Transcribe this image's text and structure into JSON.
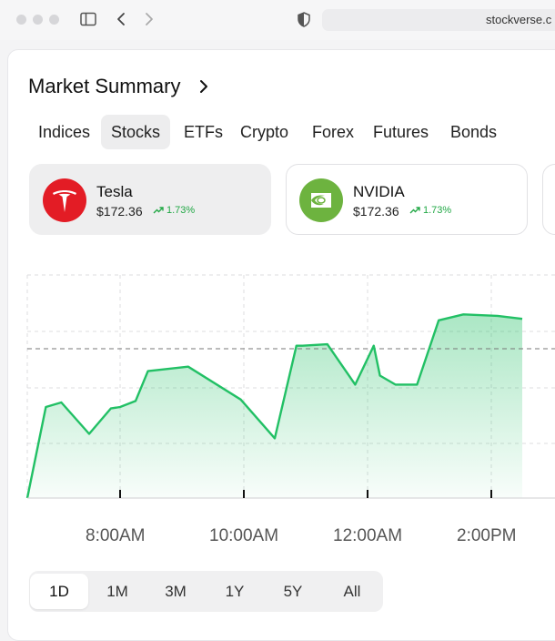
{
  "browser": {
    "url": "stockverse.c"
  },
  "title": "Market Summary",
  "tabs": [
    {
      "label": "Indices"
    },
    {
      "label": "Stocks",
      "active": true
    },
    {
      "label": "ETFs"
    },
    {
      "label": "Crypto"
    },
    {
      "label": "Forex"
    },
    {
      "label": "Futures"
    },
    {
      "label": "Bonds"
    }
  ],
  "cards": [
    {
      "name": "Tesla",
      "price": "$172.36",
      "change": "1.73%",
      "logo_color": "#e31c25",
      "active": true
    },
    {
      "name": "NVIDIA",
      "price": "$172.36",
      "change": "1.73%",
      "logo_color": "#6db33f"
    }
  ],
  "chart_data": {
    "type": "area",
    "x_tick_labels": [
      "8:00AM",
      "10:00AM",
      "12:00AM",
      "2:00PM"
    ],
    "x": [
      7.0,
      7.3,
      7.55,
      8.0,
      8.35,
      8.5,
      8.75,
      8.95,
      9.6,
      10.45,
      11.0,
      11.35,
      11.45,
      11.85,
      12.3,
      12.6,
      12.7,
      12.95,
      13.3,
      13.65,
      13.95,
      14.05,
      14.6,
      15.0
    ],
    "values": [
      0,
      6.1,
      6.4,
      4.3,
      6.0,
      6.1,
      6.5,
      8.5,
      8.8,
      6.6,
      4.0,
      10.2,
      10.2,
      10.3,
      7.6,
      10.2,
      8.2,
      7.6,
      7.6,
      11.9,
      12.2,
      12.3,
      12.2,
      12.0
    ],
    "reference_line": 10.0,
    "grid": true,
    "line_color": "#22c065",
    "fill_color": "#22c065"
  },
  "range_buttons": [
    {
      "label": "1D",
      "active": true
    },
    {
      "label": "1M"
    },
    {
      "label": "3M"
    },
    {
      "label": "1Y"
    },
    {
      "label": "5Y"
    },
    {
      "label": "All"
    }
  ]
}
